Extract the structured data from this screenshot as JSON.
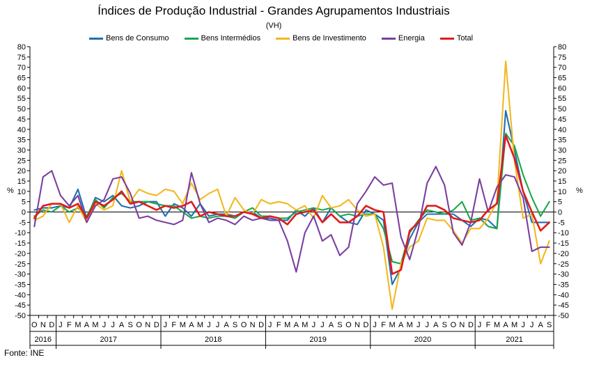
{
  "chart_data": {
    "type": "line",
    "title": "Índices de Produção Industrial - Grandes Agrupamentos Industriais",
    "subtitle": "(VH)",
    "ylabel": "%",
    "ylabel_right": "%",
    "source": "Fonte: INE",
    "ylim": [
      -50,
      80
    ],
    "yticks": [
      80,
      75,
      70,
      65,
      60,
      55,
      50,
      45,
      40,
      35,
      30,
      25,
      20,
      15,
      10,
      5,
      0,
      -5,
      -10,
      -15,
      -20,
      -25,
      -30,
      -35,
      -40,
      -45,
      -50
    ],
    "month_labels": [
      "O",
      "N",
      "D",
      "J",
      "F",
      "M",
      "A",
      "M",
      "J",
      "J",
      "A",
      "S",
      "O",
      "N",
      "D",
      "J",
      "F",
      "M",
      "A",
      "M",
      "J",
      "J",
      "A",
      "S",
      "O",
      "N",
      "D",
      "J",
      "F",
      "M",
      "A",
      "M",
      "J",
      "J",
      "A",
      "S",
      "O",
      "N",
      "D",
      "J",
      "F",
      "M",
      "A",
      "M",
      "J",
      "J",
      "A",
      "S",
      "O",
      "N",
      "D",
      "J",
      "F",
      "M",
      "A",
      "M",
      "J",
      "J",
      "A",
      "S"
    ],
    "years": [
      {
        "label": "2016",
        "start": 0,
        "end": 2
      },
      {
        "label": "2017",
        "start": 3,
        "end": 14
      },
      {
        "label": "2018",
        "start": 15,
        "end": 26
      },
      {
        "label": "2019",
        "start": 27,
        "end": 38
      },
      {
        "label": "2020",
        "start": 39,
        "end": 50
      },
      {
        "label": "2021",
        "start": 51,
        "end": 59
      }
    ],
    "series": [
      {
        "name": "Bens de Consumo",
        "color": "#1f6fb2",
        "values": [
          1,
          2,
          2,
          3,
          2,
          11,
          -3,
          7,
          5,
          8,
          3,
          2,
          3,
          5,
          5,
          -2,
          4,
          2,
          -2,
          4,
          -2,
          -1,
          -1,
          -2,
          0,
          0,
          -3,
          -3,
          -4,
          -4,
          1,
          -2,
          2,
          -5,
          2,
          -2,
          -5,
          -6,
          1,
          -1,
          -4,
          -35,
          -27,
          -13,
          -5,
          -1,
          -1,
          -1,
          -1,
          -4,
          -7,
          -3,
          -4,
          -8,
          49,
          30,
          10,
          -5,
          -5,
          -5
        ]
      },
      {
        "name": "Bens Intermédios",
        "color": "#1aa64a",
        "values": [
          -2,
          1,
          0,
          3,
          0,
          2,
          -2,
          6,
          2,
          7,
          9,
          5,
          5,
          5,
          4,
          3,
          3,
          0,
          -3,
          -2,
          -3,
          -2,
          -2,
          -3,
          0,
          2,
          -2,
          -2,
          -3,
          -3,
          0,
          1,
          2,
          1,
          2,
          -2,
          -1,
          -2,
          -1,
          -1,
          -8,
          -24,
          -25,
          -10,
          -4,
          1,
          0,
          -1,
          1,
          5,
          -4,
          -3,
          -7,
          -8,
          38,
          32,
          18,
          7,
          -2,
          5
        ]
      },
      {
        "name": "Bens de Investimento",
        "color": "#f2b81f",
        "values": [
          -4,
          -2,
          4,
          4,
          -5,
          3,
          -5,
          4,
          1,
          3,
          20,
          5,
          11,
          9,
          8,
          11,
          10,
          4,
          14,
          6,
          9,
          11,
          -2,
          7,
          1,
          -1,
          6,
          4,
          5,
          4,
          1,
          3,
          -3,
          8,
          2,
          3,
          6,
          1,
          -2,
          -1,
          -17,
          -47,
          -25,
          -17,
          -14,
          -3,
          -4,
          -4,
          -9,
          -15,
          -8,
          -8,
          -3,
          5,
          73,
          25,
          -3,
          -1,
          -25,
          -14
        ]
      },
      {
        "name": "Energia",
        "color": "#7a3fa0",
        "values": [
          -7,
          17,
          20,
          8,
          3,
          8,
          -5,
          3,
          6,
          16,
          17,
          9,
          -3,
          -2,
          -4,
          -5,
          -6,
          -4,
          19,
          4,
          -5,
          -3,
          -4,
          -6,
          -2,
          -4,
          -3,
          -4,
          -4,
          -14,
          -29,
          -10,
          -2,
          -14,
          -11,
          -21,
          -17,
          4,
          10,
          17,
          13,
          14,
          -12,
          -23,
          -8,
          14,
          22,
          13,
          -10,
          -16,
          -5,
          16,
          0,
          12,
          18,
          17,
          7,
          -19,
          -17,
          -17
        ]
      },
      {
        "name": "Total",
        "color": "#e01b1b",
        "values": [
          -3,
          3,
          4,
          4,
          2,
          4,
          -3,
          5,
          3,
          6,
          10,
          4,
          5,
          3,
          1,
          3,
          2,
          3,
          5,
          -2,
          0,
          -1,
          -2,
          -2,
          0,
          -1,
          -3,
          -2,
          -3,
          -6,
          -1,
          0,
          1,
          -5,
          -1,
          -5,
          -5,
          -2,
          3,
          1,
          0,
          -30,
          -28,
          -9,
          -5,
          3,
          3,
          1,
          -3,
          -4,
          -5,
          -4,
          1,
          4,
          37,
          26,
          10,
          0,
          -9,
          -5
        ]
      }
    ]
  }
}
